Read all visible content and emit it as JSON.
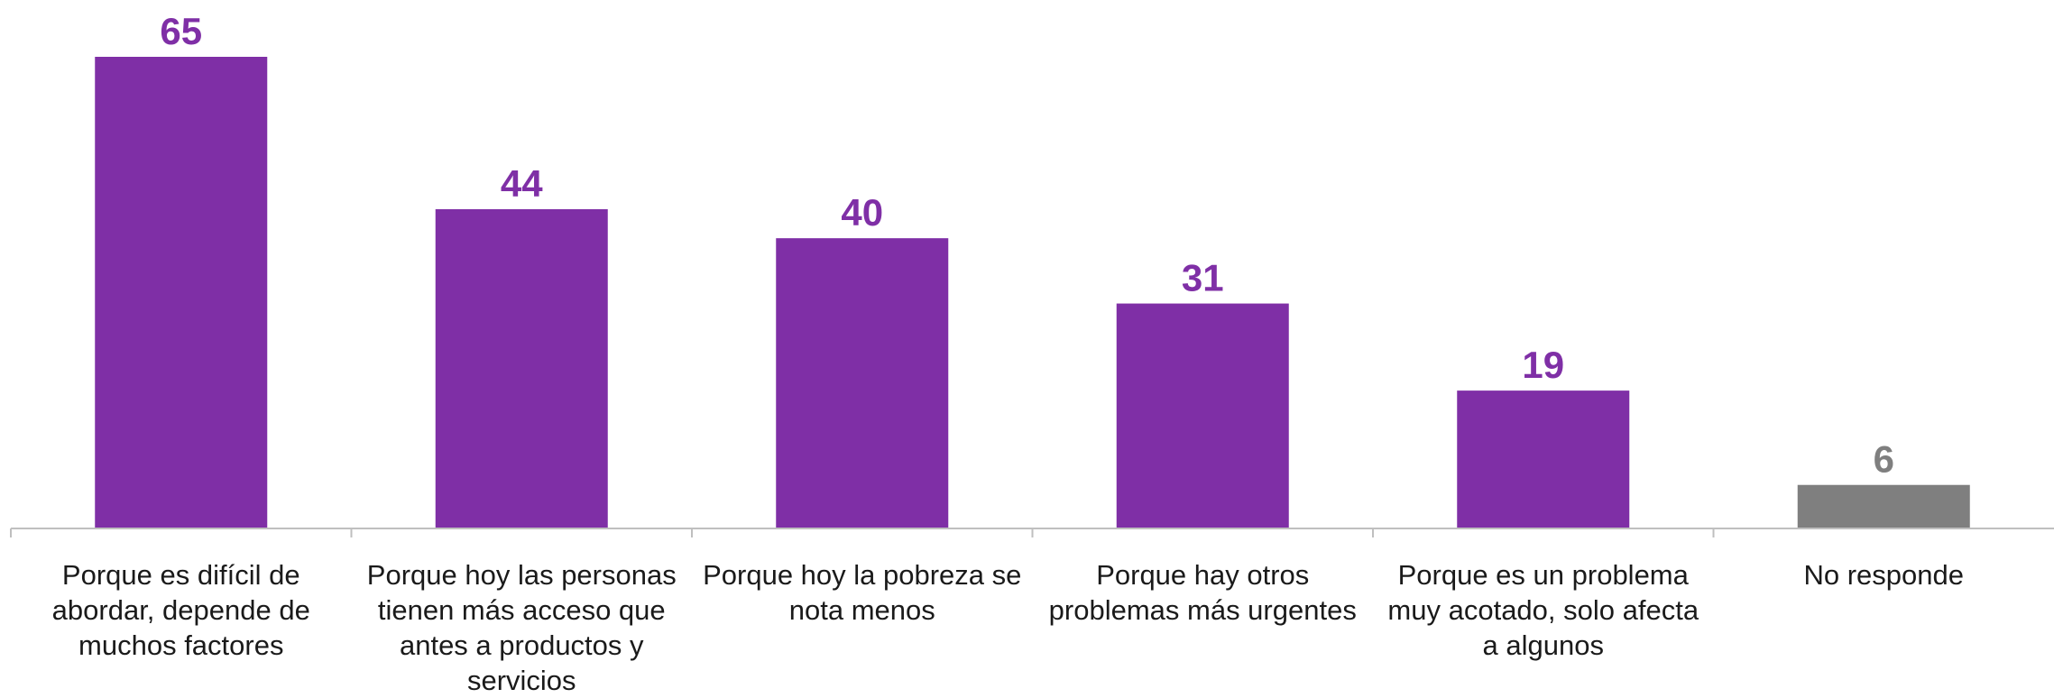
{
  "chart_data": {
    "type": "bar",
    "categories": [
      "Porque es difícil de abordar, depende de muchos factores",
      "Porque hoy las personas tienen más acceso que antes a productos y servicios",
      "Porque hoy la pobreza se nota menos",
      "Porque hay otros problemas más urgentes",
      "Porque es un problema muy acotado, solo afecta a algunos",
      "No responde"
    ],
    "values": [
      65,
      44,
      40,
      31,
      19,
      6
    ],
    "value_labels": [
      "65",
      "44",
      "40",
      "31",
      "19",
      "6"
    ],
    "bar_colors": [
      "#7f2fa6",
      "#7f2fa6",
      "#7f2fa6",
      "#7f2fa6",
      "#7f2fa6",
      "#7f7f7f"
    ],
    "label_colors": [
      "#7f2fa6",
      "#7f2fa6",
      "#7f2fa6",
      "#7f2fa6",
      "#7f2fa6",
      "#7f7f7f"
    ],
    "axis_color": "#bfbfbf",
    "ylim": [
      0,
      70
    ],
    "grid": false,
    "legend": "none",
    "title": "",
    "xlabel": "",
    "ylabel": ""
  }
}
